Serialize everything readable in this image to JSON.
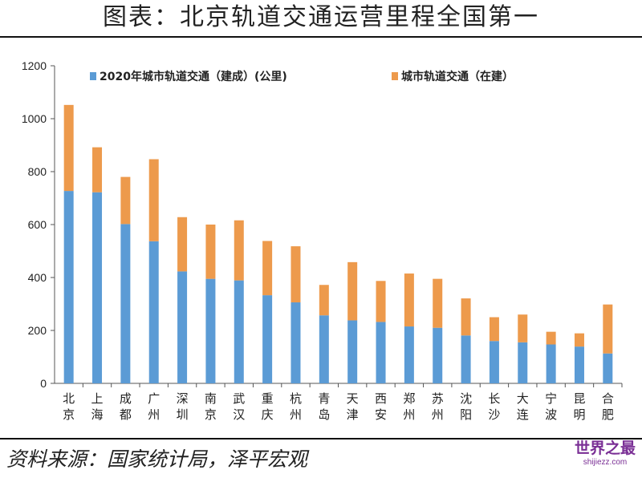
{
  "header": {
    "title": "图表：北京轨道交通运营里程全国第一"
  },
  "footer": {
    "source": "资料来源：国家统计局，泽平宏观"
  },
  "watermark": {
    "main": "世界之最",
    "sub": "shijiezz.com"
  },
  "colors": {
    "built": "#5b9bd5",
    "under_construction": "#ed9a4c",
    "axis": "#555555",
    "text": "#222222"
  },
  "chart_data": {
    "type": "bar",
    "stacked": true,
    "title": "",
    "xlabel": "",
    "ylabel": "",
    "ylim": [
      0,
      1200
    ],
    "yticks": [
      0,
      200,
      400,
      600,
      800,
      1000,
      1200
    ],
    "legend_position": "top",
    "categories": [
      "北京",
      "上海",
      "成都",
      "广州",
      "深圳",
      "南京",
      "武汉",
      "重庆",
      "杭州",
      "青岛",
      "天津",
      "西安",
      "郑州",
      "苏州",
      "沈阳",
      "长沙",
      "大连",
      "宁波",
      "昆明",
      "合肥"
    ],
    "series": [
      {
        "name": "2020年城市轨道交通（建成）(公里)",
        "values": [
          727,
          722,
          602,
          537,
          423,
          395,
          389,
          333,
          306,
          257,
          238,
          232,
          215,
          210,
          181,
          160,
          155,
          147,
          139,
          113
        ]
      },
      {
        "name": "城市轨道交通（在建）",
        "values": [
          325,
          170,
          178,
          310,
          205,
          205,
          227,
          205,
          212,
          115,
          220,
          155,
          200,
          185,
          140,
          90,
          105,
          48,
          50,
          185
        ]
      }
    ]
  }
}
